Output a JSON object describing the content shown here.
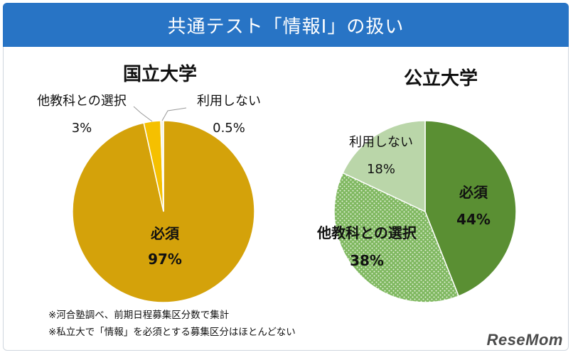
{
  "header": {
    "title": "共通テスト「情報Ⅰ」の扱い"
  },
  "chart_data": [
    {
      "type": "pie",
      "title": "国立大学",
      "slices": [
        {
          "label": "必須",
          "value": 97,
          "value_text": "97%",
          "color": "#d4a20a"
        },
        {
          "label": "利用しない",
          "value": 0.5,
          "value_text": "0.5%",
          "color": "#f2f2e6"
        },
        {
          "label": "他教科との選択",
          "value": 3,
          "value_text": "3%",
          "color": "#f5c000"
        }
      ]
    },
    {
      "type": "pie",
      "title": "公立大学",
      "slices": [
        {
          "label": "必須",
          "value": 44,
          "value_text": "44%",
          "color": "#5a8f33"
        },
        {
          "label": "他教科との選択",
          "value": 38,
          "value_text": "38%",
          "color": "#7fb860"
        },
        {
          "label": "利用しない",
          "value": 18,
          "value_text": "18%",
          "color": "#bad6a9"
        }
      ]
    }
  ],
  "notes": [
    "※河合塾調べ、前期日程募集区分数で集計",
    "※私立大で「情報」を必須とする募集区分はほとんどない"
  ],
  "logo": {
    "text": "ReseMom"
  }
}
